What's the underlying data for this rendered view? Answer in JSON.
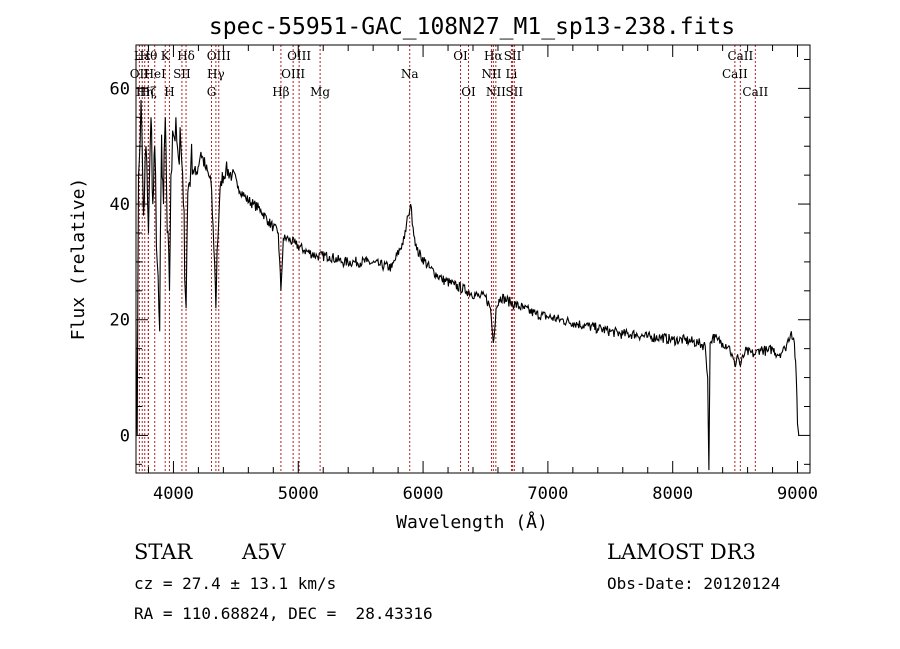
{
  "chart_data": {
    "type": "line",
    "title": "spec-55951-GAC_108N27_M1_sp13-238.fits",
    "xlabel": "Wavelength (Å)",
    "ylabel": "Flux (relative)",
    "xlim": [
      3700,
      9100
    ],
    "ylim": [
      -6.5,
      67.5
    ],
    "xticks": [
      4000,
      5000,
      6000,
      7000,
      8000,
      9000
    ],
    "yticks": [
      0,
      20,
      40,
      60
    ],
    "xtick_labels": [
      "4000",
      "5000",
      "6000",
      "7000",
      "8000",
      "9000"
    ],
    "ytick_labels": [
      "0",
      "20",
      "40",
      "60"
    ],
    "series": [
      {
        "name": "spectrum",
        "x": [
          3700,
          3710,
          3720,
          3740,
          3760,
          3780,
          3800,
          3820,
          3835,
          3850,
          3870,
          3890,
          3905,
          3920,
          3935,
          3950,
          3968,
          3980,
          4000,
          4020,
          4040,
          4060,
          4080,
          4101,
          4115,
          4140,
          4180,
          4220,
          4260,
          4300,
          4330,
          4340,
          4350,
          4380,
          4420,
          4470,
          4520,
          4580,
          4640,
          4700,
          4760,
          4800,
          4840,
          4861,
          4880,
          4920,
          4980,
          5050,
          5150,
          5250,
          5350,
          5450,
          5550,
          5650,
          5750,
          5850,
          5880,
          5900,
          5920,
          5950,
          6050,
          6150,
          6250,
          6350,
          6450,
          6500,
          6540,
          6563,
          6585,
          6620,
          6700,
          6800,
          6900,
          7000,
          7100,
          7200,
          7300,
          7400,
          7500,
          7600,
          7700,
          7800,
          7900,
          8000,
          8100,
          8200,
          8260,
          8280,
          8290,
          8300,
          8320,
          8360,
          8400,
          8450,
          8498,
          8520,
          8542,
          8580,
          8662,
          8700,
          8760,
          8800,
          8840,
          8880,
          8900,
          8950,
          8975,
          8990,
          9000,
          9010
        ],
        "values": [
          20,
          0,
          45,
          58,
          38,
          50,
          35,
          55,
          40,
          50,
          30,
          18,
          52,
          40,
          55,
          35,
          25,
          45,
          52,
          55,
          48,
          50,
          40,
          22,
          42,
          47,
          45,
          49,
          46,
          44,
          30,
          22,
          32,
          44,
          46,
          45,
          43,
          41,
          40,
          39,
          37,
          36,
          35,
          25,
          34,
          34,
          33,
          32,
          31,
          31,
          30,
          30,
          30,
          29.5,
          29,
          34,
          38,
          40,
          36,
          32,
          29,
          27,
          26,
          25,
          24,
          24,
          22,
          16,
          22,
          24,
          23,
          22,
          21,
          20.5,
          20,
          19.5,
          19,
          18.5,
          18,
          17.5,
          17.5,
          17,
          17,
          16.5,
          16.5,
          16,
          15.5,
          10,
          -6,
          16,
          17,
          16.5,
          16,
          15.5,
          12,
          14,
          12,
          14.5,
          14,
          15,
          14.5,
          15,
          14,
          14.5,
          15,
          18,
          16,
          10,
          2,
          0
        ]
      }
    ],
    "spectral_lines": [
      {
        "label": "Hε",
        "x": 3750,
        "tier": 0
      },
      {
        "label": "OII",
        "x": 3727,
        "tier": 1
      },
      {
        "label": "Hη",
        "x": 3770,
        "tier": 2
      },
      {
        "label": "Hζ",
        "x": 3798,
        "tier": 2
      },
      {
        "label": "Hθ",
        "x": 3800,
        "tier": 0
      },
      {
        "label": "HeI",
        "x": 3850,
        "tier": 1
      },
      {
        "label": "K",
        "x": 3934,
        "tier": 0
      },
      {
        "label": "SII",
        "x": 4068,
        "tier": 1
      },
      {
        "label": "H",
        "x": 3968,
        "tier": 2
      },
      {
        "label": "Hδ",
        "x": 4101,
        "tier": 0
      },
      {
        "label": "OIII",
        "x": 4363,
        "tier": 0
      },
      {
        "label": "Hγ",
        "x": 4340,
        "tier": 1
      },
      {
        "label": "G",
        "x": 4305,
        "tier": 2
      },
      {
        "label": "Hβ",
        "x": 4861,
        "tier": 2
      },
      {
        "label": "OIII",
        "x": 5007,
        "tier": 0
      },
      {
        "label": "OIII",
        "x": 4959,
        "tier": 1
      },
      {
        "label": "Mg",
        "x": 5175,
        "tier": 2
      },
      {
        "label": "Na",
        "x": 5893,
        "tier": 1
      },
      {
        "label": "OI",
        "x": 6300,
        "tier": 0
      },
      {
        "label": "OI",
        "x": 6364,
        "tier": 2
      },
      {
        "label": "Hα",
        "x": 6563,
        "tier": 0
      },
      {
        "label": "SII",
        "x": 6717,
        "tier": 0
      },
      {
        "label": "NII",
        "x": 6548,
        "tier": 1
      },
      {
        "label": "Li",
        "x": 6708,
        "tier": 1
      },
      {
        "label": "NII",
        "x": 6583,
        "tier": 2
      },
      {
        "label": "SII",
        "x": 6731,
        "tier": 2
      },
      {
        "label": "CaII",
        "x": 8542,
        "tier": 0
      },
      {
        "label": "CaII",
        "x": 8498,
        "tier": 1
      },
      {
        "label": "CaII",
        "x": 8662,
        "tier": 2
      }
    ]
  },
  "info": {
    "object_class": "STAR",
    "subclass": "A5V",
    "survey": "LAMOST DR3",
    "redshift": "cz = 27.4 ± 13.1 km/s",
    "obs_date": "Obs-Date: 20120124",
    "coords": "RA = 110.68824, DEC =  28.43316"
  },
  "colors": {
    "axis": "#000000",
    "spectrum": "#000000",
    "line_marker": "#b22222"
  }
}
